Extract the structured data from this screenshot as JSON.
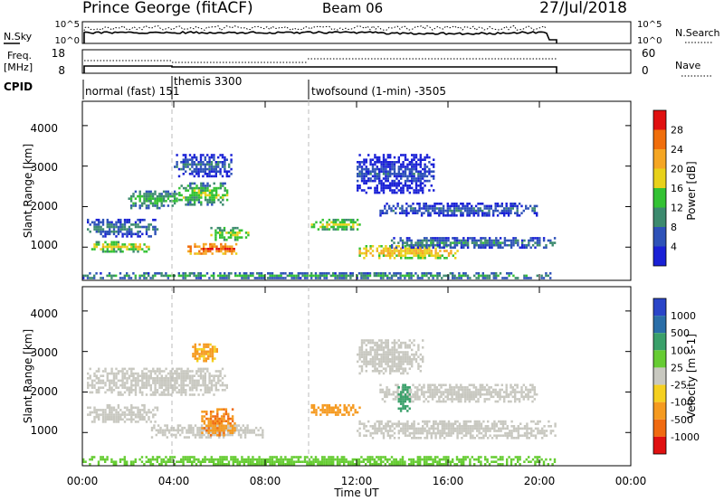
{
  "header": {
    "station": "Prince George (fitACF)",
    "beam": "Beam 06",
    "date": "27/Jul/2018"
  },
  "nsky_panel": {
    "left_label": "N.Sky",
    "left_ticks": [
      "10^5",
      "10^0"
    ],
    "right_ticks": [
      "10^5",
      "10^0"
    ],
    "right_label": "N.Search"
  },
  "freq_panel": {
    "left_label_line1": "Freq.",
    "left_label_line2": "[MHz]",
    "left_ticks": [
      "18",
      "8"
    ],
    "right_ticks": [
      "60",
      "0"
    ],
    "right_label": "Nave"
  },
  "cpid_panel": {
    "label": "CPID",
    "modes": [
      {
        "label": "normal (fast)  151",
        "start_hour": 0.1
      },
      {
        "label": "themis 3300",
        "start_hour": 4.0
      },
      {
        "label": "twofsound (1-min)  -3505",
        "start_hour": 10.0
      }
    ]
  },
  "power_panel": {
    "ylabel": "Slant Range [km]",
    "yticks": [
      "1000",
      "2000",
      "3000",
      "4000"
    ],
    "colorbar_label": "Power [dB]",
    "colorbar_ticks": [
      "4",
      "8",
      "12",
      "16",
      "20",
      "24",
      "28"
    ],
    "colorbar_colors": [
      "#1a21d6",
      "#2e52b8",
      "#3c8a6e",
      "#33c233",
      "#e8d11a",
      "#f5a623",
      "#f06e0c",
      "#e01010"
    ]
  },
  "velocity_panel": {
    "ylabel": "Slant Range [km]",
    "yticks": [
      "1000",
      "2000",
      "3000",
      "4000"
    ],
    "colorbar_label": "Velocity [m s-1]",
    "colorbar_ticks": [
      "1000",
      "500",
      "100",
      "25",
      "-25",
      "-100",
      "-500",
      "-1000"
    ],
    "colorbar_colors": [
      "#2a45c8",
      "#2a6ea8",
      "#3aa06a",
      "#66cc33",
      "#c8c8c0",
      "#f5d020",
      "#f59a20",
      "#f06a10",
      "#e01010"
    ]
  },
  "xaxis": {
    "label": "Time UT",
    "ticks": [
      "00:00",
      "04:00",
      "08:00",
      "12:00",
      "16:00",
      "20:00",
      "00:00"
    ]
  },
  "chart_data": {
    "type": "heatmap",
    "title": "Prince George (fitACF)  Beam 06  27/Jul/2018",
    "xlabel": "Time UT",
    "ylabel": "Slant Range [km]",
    "xlim_hours": [
      0,
      24
    ],
    "ylim_km": [
      180,
      4600
    ],
    "data_end_hour": 20.8,
    "power_regions": [
      {
        "t0": 0.2,
        "t1": 3.4,
        "r0": 1200,
        "r1": 1700,
        "db": 10
      },
      {
        "t0": 2.0,
        "t1": 4.2,
        "r0": 1900,
        "r1": 2400,
        "db": 14
      },
      {
        "t0": 4.2,
        "t1": 6.4,
        "r0": 2000,
        "r1": 2600,
        "db": 16
      },
      {
        "t0": 0.2,
        "t1": 3.0,
        "r0": 850,
        "r1": 1150,
        "db": 18
      },
      {
        "t0": 4.6,
        "t1": 6.8,
        "r0": 780,
        "r1": 1100,
        "db": 28
      },
      {
        "t0": 5.6,
        "t1": 7.4,
        "r0": 1100,
        "r1": 1500,
        "db": 18
      },
      {
        "t0": 4.0,
        "t1": 6.6,
        "r0": 2700,
        "r1": 3300,
        "db": 8
      },
      {
        "t0": 10.0,
        "t1": 12.2,
        "r0": 1400,
        "r1": 1700,
        "db": 18
      },
      {
        "t0": 12.0,
        "t1": 16.5,
        "r0": 650,
        "r1": 1050,
        "db": 22
      },
      {
        "t0": 13.5,
        "t1": 20.8,
        "r0": 950,
        "r1": 1250,
        "db": 10
      },
      {
        "t0": 13.0,
        "t1": 20.0,
        "r0": 1700,
        "r1": 2100,
        "db": 8
      },
      {
        "t0": 12.0,
        "t1": 15.5,
        "r0": 2300,
        "r1": 3300,
        "db": 6
      },
      {
        "t0": 0.0,
        "t1": 20.8,
        "r0": 180,
        "r1": 380,
        "db": 12
      }
    ],
    "velocity_regions": [
      {
        "t0": 0.2,
        "t1": 6.4,
        "r0": 1900,
        "r1": 2600,
        "v": 0
      },
      {
        "t0": 0.2,
        "t1": 3.4,
        "r0": 1200,
        "r1": 1700,
        "v": 0
      },
      {
        "t0": 3.0,
        "t1": 8.0,
        "r0": 800,
        "r1": 1200,
        "v": 0
      },
      {
        "t0": 5.2,
        "t1": 6.8,
        "r0": 900,
        "r1": 1600,
        "v": -400
      },
      {
        "t0": 4.8,
        "t1": 6.0,
        "r0": 2700,
        "r1": 3200,
        "v": -150
      },
      {
        "t0": 10.0,
        "t1": 12.2,
        "r0": 1400,
        "r1": 1700,
        "v": -300
      },
      {
        "t0": 12.0,
        "t1": 20.8,
        "r0": 800,
        "r1": 1300,
        "v": 0
      },
      {
        "t0": 13.0,
        "t1": 20.0,
        "r0": 1700,
        "r1": 2200,
        "v": 0
      },
      {
        "t0": 12.0,
        "t1": 15.0,
        "r0": 2400,
        "r1": 3300,
        "v": 0
      },
      {
        "t0": 13.8,
        "t1": 14.4,
        "r0": 1500,
        "r1": 2200,
        "v": 300
      },
      {
        "t0": 0.0,
        "t1": 20.8,
        "r0": 180,
        "r1": 420,
        "v": 60
      }
    ]
  }
}
